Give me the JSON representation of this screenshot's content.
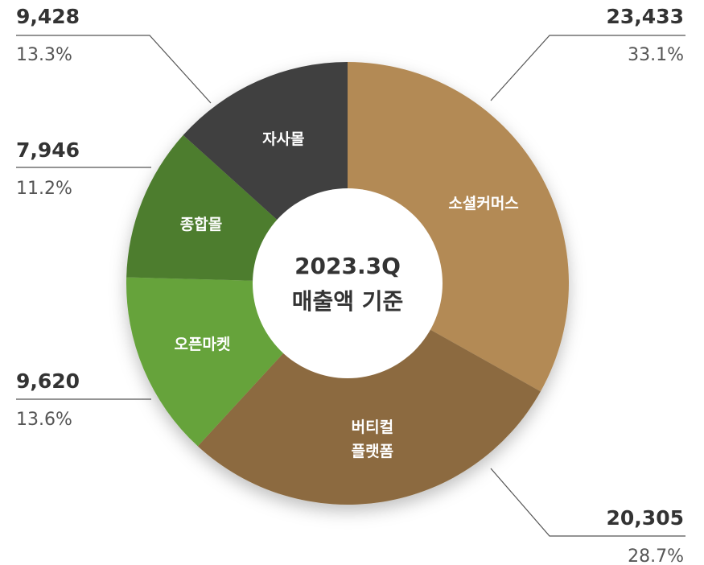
{
  "chart_data": {
    "type": "donut",
    "center_text": [
      "2023.3Q",
      "매출액 기준"
    ],
    "categories": [
      "소셜커머스",
      "버티컬\n플랫폼",
      "오픈마켓",
      "종합몰",
      "자사몰"
    ],
    "values": [
      23433,
      20305,
      9620,
      7946,
      9428
    ],
    "value_labels": [
      "23,433",
      "20,305",
      "9,620",
      "7,946",
      "9,428"
    ],
    "percent_labels": [
      "33.1%",
      "28.7%",
      "13.6%",
      "11.2%",
      "13.3%"
    ],
    "colors": [
      "#b38a55",
      "#8c6b3f",
      "#66a33a",
      "#4e7d2e",
      "#3f3f3f"
    ]
  }
}
